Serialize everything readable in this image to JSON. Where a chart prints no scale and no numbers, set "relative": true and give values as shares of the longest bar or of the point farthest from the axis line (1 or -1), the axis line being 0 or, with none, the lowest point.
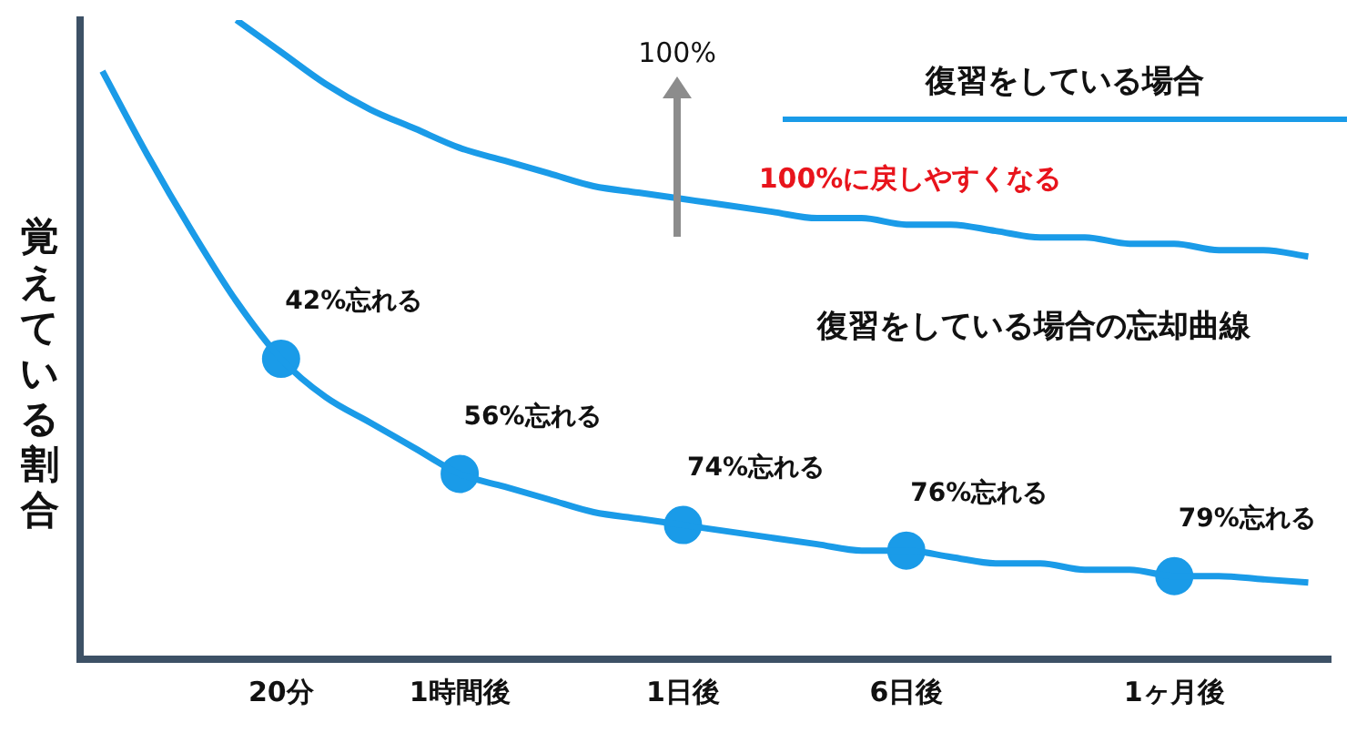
{
  "chart_data": {
    "type": "line",
    "relative": true,
    "ylabel": "覚えている割合",
    "categories": [
      null,
      null,
      null,
      null,
      "20分",
      null,
      null,
      null,
      "1時間後",
      null,
      null,
      null,
      null,
      "1日後",
      null,
      null,
      null,
      null,
      "6日後",
      null,
      null,
      null,
      null,
      null,
      "1ヶ月後",
      null,
      null,
      null
    ],
    "series": [
      {
        "name": "復習をしている場合",
        "color": "#1a9be8",
        "marker": "none",
        "values": [
          null,
          null,
          null,
          1.0,
          0.95,
          0.9,
          0.86,
          0.83,
          0.8,
          0.78,
          0.76,
          0.74,
          0.73,
          0.72,
          0.71,
          0.7,
          0.69,
          0.69,
          0.68,
          0.68,
          0.67,
          0.66,
          0.66,
          0.65,
          0.65,
          0.64,
          0.64,
          0.63
        ]
      },
      {
        "color": "#1a9be8",
        "marker": "none",
        "values": [
          0.92,
          0.79,
          0.67,
          0.56,
          0.47,
          0.41,
          0.37,
          0.33,
          0.29,
          0.27,
          0.25,
          0.23,
          0.22,
          0.21,
          0.2,
          0.19,
          0.18,
          0.17,
          0.17,
          0.16,
          0.15,
          0.15,
          0.14,
          0.14,
          0.13,
          0.13,
          0.125,
          0.12
        ]
      },
      {
        "type": "scatter",
        "color": "#1a9be8",
        "marker": "circle",
        "x": [
          "20分",
          "1時間後",
          "1日後",
          "6日後",
          "1ヶ月後"
        ],
        "values": [
          0.47,
          0.29,
          0.21,
          0.17,
          0.13
        ]
      }
    ],
    "legend": "top right",
    "grid": false,
    "annotations": [
      "復習をしている場合の忘却曲線",
      "100%",
      "100%に戻しやすくなる",
      {
        "text": "42%忘れる",
        "x": "20分",
        "y": 0.47
      },
      {
        "text": "56%忘れる",
        "x": "1時間後",
        "y": 0.29
      },
      {
        "text": "74%忘れる",
        "x": "1日後",
        "y": 0.21
      },
      {
        "text": "76%忘れる",
        "x": "6日後",
        "y": 0.17
      },
      {
        "text": "79%忘れる",
        "x": "1ヶ月後",
        "y": 0.13
      }
    ]
  }
}
